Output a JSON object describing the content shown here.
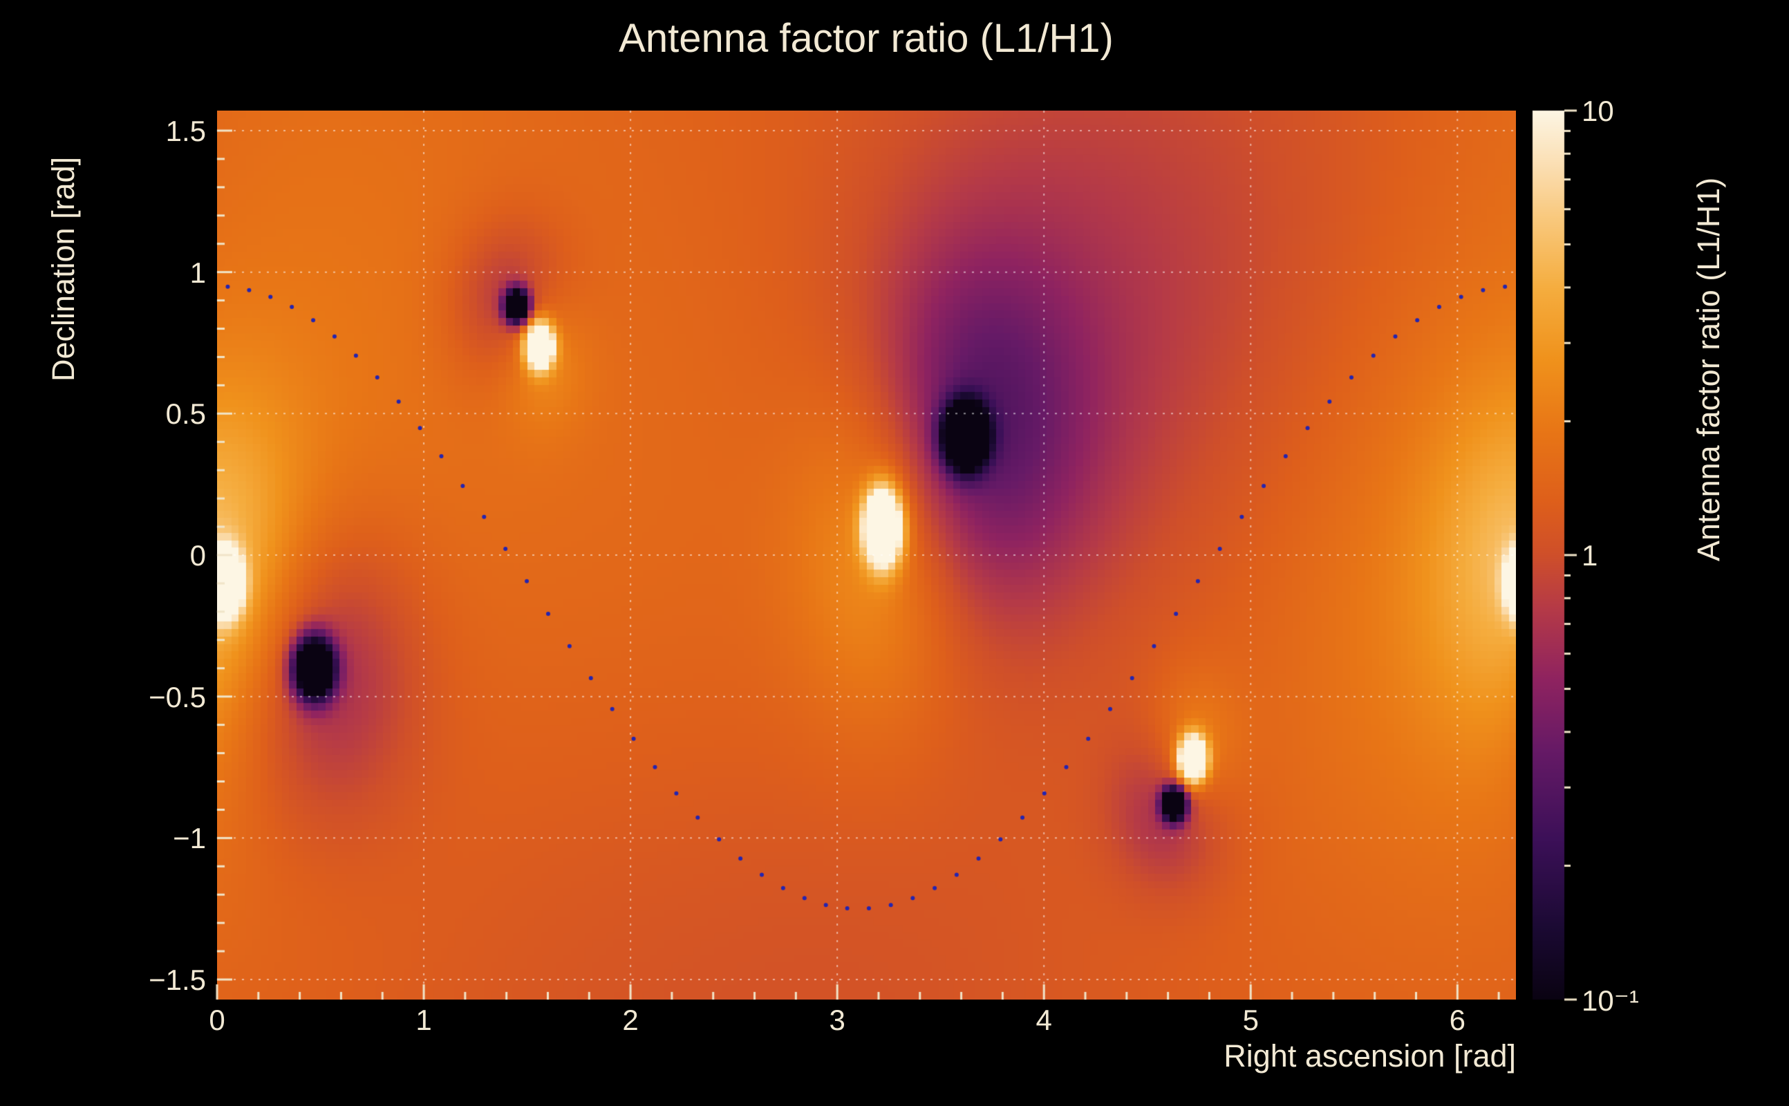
{
  "title": "Antenna factor ratio (L1/H1)",
  "axes": {
    "x": {
      "label": "Right ascension [rad]",
      "min": 0,
      "max": 6.2832,
      "major_ticks": [
        0,
        1,
        2,
        3,
        4,
        5,
        6
      ],
      "tick_labels": [
        "0",
        "1",
        "2",
        "3",
        "4",
        "5",
        "6"
      ],
      "minor_step": 0.2
    },
    "y": {
      "label": "Declination [rad]",
      "min": -1.5708,
      "max": 1.5708,
      "major_ticks": [
        1.5,
        1.0,
        0.5,
        0,
        -0.5,
        -1.0,
        -1.5
      ],
      "tick_labels": [
        "1.5",
        "1",
        "0.5",
        "0",
        "−0.5",
        "−1",
        "−1.5"
      ],
      "minor_step": 0.1
    }
  },
  "colorbar": {
    "label": "Antenna factor ratio (L1/H1)",
    "scale": "log",
    "min": 0.1,
    "max": 10,
    "ticks": [
      {
        "label": "10",
        "value": 10
      },
      {
        "label": "1",
        "value": 1
      },
      {
        "label": "10⁻¹",
        "value": 0.1
      }
    ],
    "minor_tick_values": [
      0.2,
      0.3,
      0.4,
      0.5,
      0.6,
      0.7,
      0.8,
      0.9,
      2,
      3,
      4,
      5,
      6,
      7,
      8,
      9
    ]
  },
  "chart_data": {
    "type": "heatmap",
    "title": "Antenna factor ratio (L1/H1)",
    "xlabel": "Right ascension [rad]",
    "ylabel": "Declination [rad]",
    "zlabel": "Antenna factor ratio (L1/H1)",
    "x_range": [
      0,
      6.2832
    ],
    "y_range": [
      -1.5708,
      1.5708
    ],
    "z_range": [
      0.1,
      10
    ],
    "z_scale": "log",
    "grid": true,
    "bins": {
      "x": 180,
      "y": 120
    },
    "base_log10_ratio": 0.12,
    "extrema": [
      {
        "kind": "min",
        "x": 1.45,
        "y": 0.88,
        "core_sigma": 0.04,
        "core_amp": -2.0,
        "halo_sigma": 0.2,
        "halo_amp": -0.45,
        "stretch_y": 1.0
      },
      {
        "kind": "max",
        "x": 1.56,
        "y": 0.74,
        "core_sigma": 0.045,
        "core_amp": 2.0,
        "halo_sigma": 0.16,
        "halo_amp": 0.35,
        "stretch_y": 1.2
      },
      {
        "kind": "min",
        "x": 3.62,
        "y": 0.42,
        "core_sigma": 0.07,
        "core_amp": -2.2,
        "halo_sigma": 0.4,
        "halo_amp": -0.55,
        "stretch_y": 1.1
      },
      {
        "kind": "max",
        "x": 3.22,
        "y": 0.1,
        "core_sigma": 0.06,
        "core_amp": 2.2,
        "halo_sigma": 0.3,
        "halo_amp": 0.45,
        "stretch_y": 1.5
      },
      {
        "kind": "max",
        "x": 0.04,
        "y": -0.1,
        "core_sigma": 0.055,
        "core_amp": 2.0,
        "halo_sigma": 0.3,
        "halo_amp": 0.45,
        "stretch_y": 1.4
      },
      {
        "kind": "min",
        "x": 0.47,
        "y": -0.4,
        "core_sigma": 0.065,
        "core_amp": -2.2,
        "halo_sigma": 0.35,
        "halo_amp": -0.5,
        "stretch_y": 1.1
      },
      {
        "kind": "max",
        "x": 4.72,
        "y": -0.72,
        "core_sigma": 0.045,
        "core_amp": 2.0,
        "halo_sigma": 0.16,
        "halo_amp": 0.35,
        "stretch_y": 1.2
      },
      {
        "kind": "min",
        "x": 4.63,
        "y": -0.88,
        "core_sigma": 0.04,
        "core_amp": -2.0,
        "halo_sigma": 0.2,
        "halo_amp": -0.4,
        "stretch_y": 1.0
      }
    ],
    "broad_features": [
      {
        "x": 0.5,
        "y": 1.35,
        "sigma": 0.9,
        "amp": 0.1
      },
      {
        "x": 3.9,
        "y": 0.85,
        "sigma": 0.7,
        "amp": -0.18
      },
      {
        "x": 4.95,
        "y": 0.9,
        "sigma": 0.9,
        "amp": -0.15
      },
      {
        "x": 6.05,
        "y": -0.1,
        "sigma": 0.8,
        "amp": 0.25
      },
      {
        "x": 2.9,
        "y": -1.4,
        "sigma": 1.0,
        "amp": -0.12
      },
      {
        "x": 2.3,
        "y": -0.3,
        "sigma": 1.0,
        "amp": 0.12
      },
      {
        "x": 1.6,
        "y": -1.1,
        "sigma": 0.9,
        "amp": -0.06
      }
    ],
    "transit_curve": {
      "style": "dotted",
      "color": "#2424b0",
      "x_peak": 0,
      "peak_dec": 0.95,
      "x_trough": 3.1,
      "trough_dec": -1.25,
      "x_max": 6.2832,
      "dots_per_half": 30
    },
    "palette": [
      [
        0.0,
        "#0a0312"
      ],
      [
        0.08,
        "#1b0a33"
      ],
      [
        0.18,
        "#3c1058"
      ],
      [
        0.28,
        "#661a66"
      ],
      [
        0.36,
        "#8f2360"
      ],
      [
        0.44,
        "#b53a47"
      ],
      [
        0.5,
        "#cf4f2a"
      ],
      [
        0.56,
        "#de5f1b"
      ],
      [
        0.64,
        "#e87616"
      ],
      [
        0.72,
        "#f0921c"
      ],
      [
        0.8,
        "#f5ad3f"
      ],
      [
        0.88,
        "#f9c97e"
      ],
      [
        0.94,
        "#fbdfb4"
      ],
      [
        1.0,
        "#fdf6e4"
      ]
    ],
    "grid_color": "rgba(255,255,255,0.55)",
    "text_color": "#f0e4c8"
  }
}
